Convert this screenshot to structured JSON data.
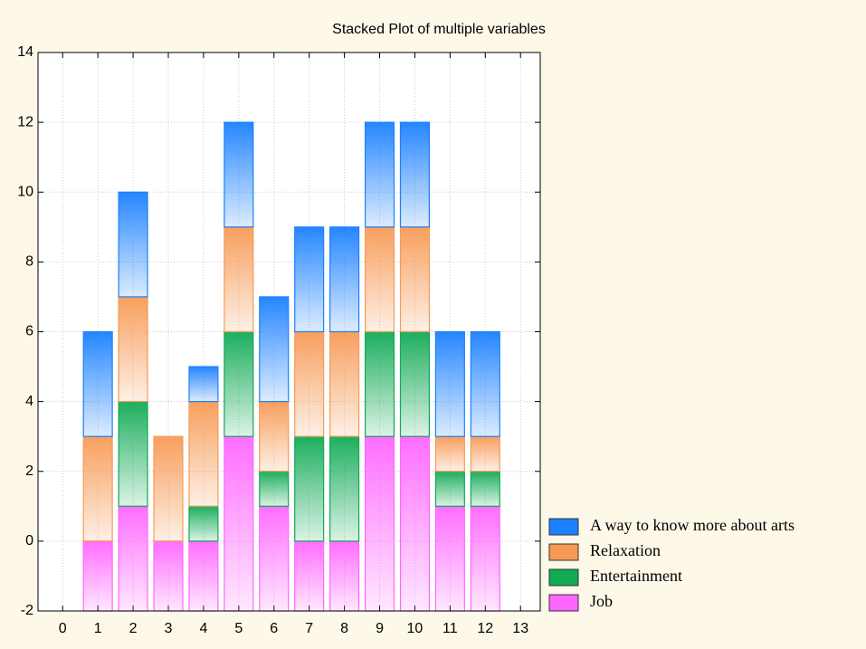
{
  "chart_data": {
    "type": "stacked-bar",
    "title": "Stacked Plot of multiple variables",
    "x": [
      1,
      2,
      3,
      4,
      5,
      6,
      7,
      8,
      9,
      10,
      11,
      12
    ],
    "series": [
      {
        "name": "Job",
        "color": "#ff66ff",
        "values": [
          0,
          1,
          0,
          0,
          3,
          1,
          0,
          0,
          3,
          3,
          1,
          1
        ]
      },
      {
        "name": "Entertainment",
        "color": "#11aa55",
        "values": [
          0,
          3,
          0,
          1,
          3,
          1,
          3,
          3,
          3,
          3,
          1,
          1
        ]
      },
      {
        "name": "Relaxation",
        "color": "#f79a55",
        "values": [
          3,
          3,
          3,
          3,
          3,
          2,
          3,
          3,
          3,
          3,
          1,
          1
        ]
      },
      {
        "name": "A way to know more about arts",
        "color": "#1a80ff",
        "values": [
          3,
          3,
          0,
          1,
          3,
          3,
          3,
          3,
          3,
          3,
          3,
          3
        ]
      }
    ],
    "xlim": [
      -0.7,
      13.56
    ],
    "xticks": [
      0,
      1,
      2,
      3,
      4,
      5,
      6,
      7,
      8,
      9,
      10,
      11,
      12,
      13
    ],
    "ylim": [
      -2,
      14
    ],
    "yticks": [
      -2,
      0,
      2,
      4,
      6,
      8,
      10,
      12,
      14
    ],
    "grid": true,
    "legend": "lower right"
  }
}
